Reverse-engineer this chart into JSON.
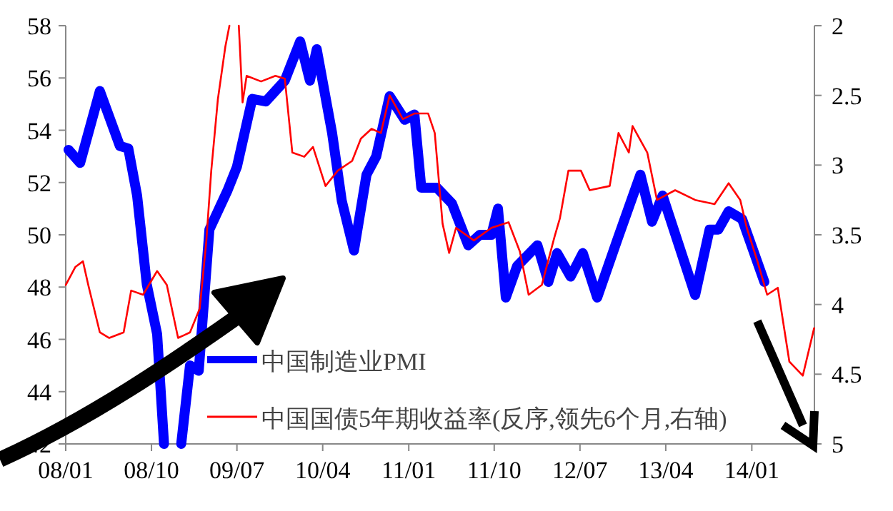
{
  "chart_data": {
    "type": "line",
    "xlim": [
      "2008-01-01",
      "2014-07-20"
    ],
    "xticks": [
      {
        "value": "2008-01-01",
        "label": "08/01"
      },
      {
        "value": "2008-10-01",
        "label": "08/10"
      },
      {
        "value": "2009-07-01",
        "label": "09/07"
      },
      {
        "value": "2010-04-01",
        "label": "10/04"
      },
      {
        "value": "2011-01-01",
        "label": "11/01"
      },
      {
        "value": "2011-10-01",
        "label": "11/10"
      },
      {
        "value": "2012-07-01",
        "label": "12/07"
      },
      {
        "value": "2013-04-01",
        "label": "13/04"
      },
      {
        "value": "2014-01-01",
        "label": "14/01"
      }
    ],
    "ylim": [
      42,
      58
    ],
    "yticks": [
      42,
      44,
      46,
      48,
      50,
      52,
      54,
      56,
      58
    ],
    "y2lim": [
      5,
      2
    ],
    "y2ticks": [
      2,
      2.5,
      3,
      3.5,
      4,
      4.5,
      5
    ],
    "legend": "bottom",
    "grid": false,
    "marker": "none",
    "line_style": "solid",
    "series": [
      {
        "name": "中国制造业PMI",
        "color": "#0000ff",
        "x": [
          "2008-01-10",
          "2008-02-16",
          "2008-04-19",
          "2008-06-22",
          "2008-07-19",
          "2008-08-16",
          "2008-09-16",
          "2008-10-19",
          "2008-11-10",
          "2008-12-15",
          "2009-01-04",
          "2009-02-01",
          "2009-03-01",
          "2009-04-04",
          "2009-06-01",
          "2009-07-01",
          "2009-08-19",
          "2009-10-01",
          "2009-12-01",
          "2010-01-19",
          "2010-02-19",
          "2010-03-13",
          "2010-05-01",
          "2010-06-01",
          "2010-07-10",
          "2010-08-19",
          "2010-09-19",
          "2010-11-01",
          "2010-12-19",
          "2011-01-19",
          "2011-02-10",
          "2011-04-01",
          "2011-05-19",
          "2011-07-10",
          "2011-08-16",
          "2011-09-22",
          "2011-10-13",
          "2011-11-07",
          "2011-12-13",
          "2012-02-16",
          "2012-03-22",
          "2012-04-19",
          "2012-06-01",
          "2012-07-10",
          "2012-08-25",
          "2012-10-28",
          "2013-01-10",
          "2013-02-16",
          "2013-03-22",
          "2013-07-04",
          "2013-08-19",
          "2013-09-16",
          "2013-10-19",
          "2013-12-01",
          "2014-02-10"
        ],
        "values": [
          53.25,
          52.75,
          55.5,
          53.4,
          53.3,
          51.5,
          48.1,
          46.2,
          42,
          null,
          42,
          45,
          44.8,
          50.2,
          51.7,
          52.6,
          55.2,
          55.1,
          55.9,
          57.4,
          55.9,
          57.1,
          53.9,
          51.3,
          49.4,
          52.3,
          53,
          55.3,
          54.4,
          54.6,
          51.8,
          51.8,
          51.2,
          49.6,
          50,
          50,
          51,
          47.6,
          48.8,
          49.6,
          48.2,
          49.3,
          48.4,
          49.3,
          47.6,
          49.8,
          52.3,
          50.5,
          51.5,
          47.7,
          50.2,
          50.2,
          50.9,
          50.6,
          48.2
        ]
      },
      {
        "name": "中国国债5年期收益率(反序,领先6个月,右轴)",
        "color": "#ff0000",
        "axis": "y2",
        "x": [
          "2008-01-01",
          "2008-02-01",
          "2008-02-25",
          "2008-03-13",
          "2008-04-19",
          "2008-05-19",
          "2008-07-04",
          "2008-07-28",
          "2008-09-04",
          "2008-10-19",
          "2008-11-19",
          "2008-12-25",
          "2009-02-01",
          "2009-03-04",
          "2009-03-25",
          "2009-04-10",
          "2009-05-01",
          "2009-05-25",
          "2009-06-07",
          "2009-06-20",
          "2009-07-07",
          "2009-07-19",
          "2009-08-01",
          "2009-09-16",
          "2009-11-01",
          "2009-12-01",
          "2009-12-25",
          "2010-02-01",
          "2010-03-01",
          "2010-04-10",
          "2010-05-19",
          "2010-07-04",
          "2010-08-01",
          "2010-09-04",
          "2010-10-04",
          "2010-11-01",
          "2010-12-13",
          "2011-01-19",
          "2011-03-04",
          "2011-03-25",
          "2011-04-19",
          "2011-05-10",
          "2011-06-01",
          "2011-07-28",
          "2011-09-22",
          "2011-11-16",
          "2011-12-22",
          "2012-01-19",
          "2012-03-01",
          "2012-04-10",
          "2012-04-28",
          "2012-05-25",
          "2012-07-04",
          "2012-08-01",
          "2012-10-04",
          "2012-11-01",
          "2012-12-04",
          "2012-12-16",
          "2013-02-01",
          "2013-03-04",
          "2013-05-01",
          "2013-07-04",
          "2013-09-04",
          "2013-10-19",
          "2013-11-25",
          "2013-12-16",
          "2014-01-19",
          "2014-02-19",
          "2014-03-25",
          "2014-05-01",
          "2014-06-13",
          "2014-07-19"
        ],
        "values": [
          3.86,
          3.73,
          3.69,
          3.86,
          4.2,
          4.24,
          4.2,
          3.9,
          3.93,
          3.76,
          3.86,
          4.24,
          4.2,
          4.03,
          3.55,
          3.04,
          2.53,
          2.15,
          2,
          null,
          2,
          2.55,
          2.36,
          2.4,
          2.36,
          2.38,
          2.91,
          2.94,
          2.87,
          3.15,
          3.04,
          2.97,
          2.81,
          2.74,
          2.77,
          2.5,
          2.67,
          2.63,
          2.63,
          2.77,
          3.42,
          3.63,
          3.45,
          3.54,
          3.45,
          3.41,
          3.62,
          3.93,
          3.86,
          3.52,
          3.38,
          3.04,
          3.04,
          3.18,
          3.15,
          2.77,
          2.91,
          2.72,
          2.91,
          3.25,
          3.18,
          3.25,
          3.28,
          3.13,
          3.25,
          3.45,
          3.69,
          3.93,
          3.88,
          4.41,
          4.51,
          4.17
        ]
      }
    ]
  }
}
